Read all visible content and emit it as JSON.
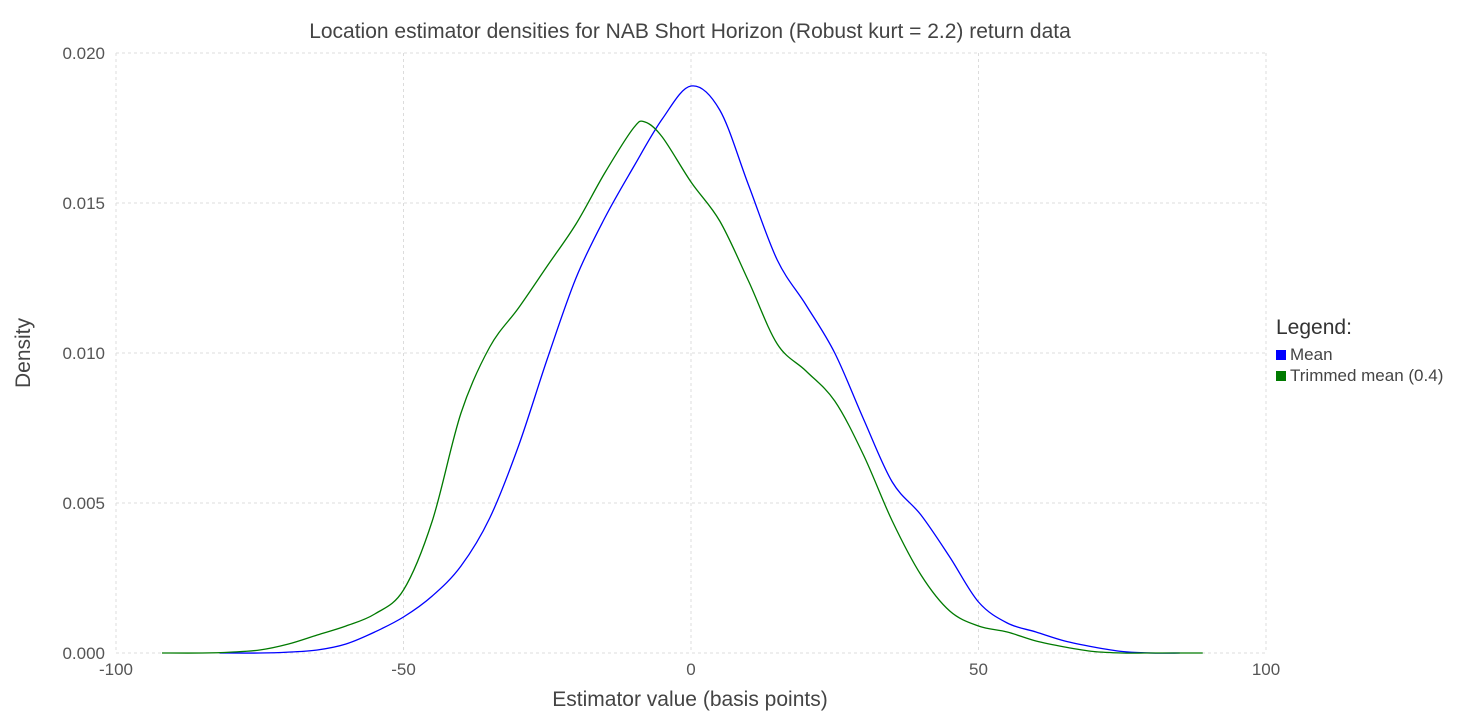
{
  "chart_data": {
    "type": "line",
    "title": "Location estimator densities for NAB Short Horizon (Robust kurt = 2.2) return data",
    "xlabel": "Estimator value (basis points)",
    "ylabel": "Density",
    "xlim": [
      -100,
      100
    ],
    "ylim": [
      0,
      0.02
    ],
    "x_ticks": [
      "-100",
      "-50",
      "0",
      "50",
      "100"
    ],
    "y_ticks": [
      "0.000",
      "0.005",
      "0.010",
      "0.015",
      "0.020"
    ],
    "grid": true,
    "legend": {
      "title": "Legend:",
      "placement": "right"
    },
    "series": [
      {
        "name": "Mean",
        "color": "#0000ff",
        "points": [
          [
            -82,
            0.0
          ],
          [
            -75,
            0.0
          ],
          [
            -70,
            3e-05
          ],
          [
            -65,
            0.0001
          ],
          [
            -60,
            0.0003
          ],
          [
            -55,
            0.0007
          ],
          [
            -50,
            0.0012
          ],
          [
            -45,
            0.0019
          ],
          [
            -40,
            0.0029
          ],
          [
            -35,
            0.0045
          ],
          [
            -30,
            0.0069
          ],
          [
            -25,
            0.0098
          ],
          [
            -20,
            0.0125
          ],
          [
            -15,
            0.0145
          ],
          [
            -10,
            0.0162
          ],
          [
            -5,
            0.0178
          ],
          [
            0,
            0.0189
          ],
          [
            5,
            0.0181
          ],
          [
            10,
            0.0156
          ],
          [
            15,
            0.0131
          ],
          [
            20,
            0.0116
          ],
          [
            25,
            0.01
          ],
          [
            30,
            0.0078
          ],
          [
            35,
            0.0057
          ],
          [
            40,
            0.0046
          ],
          [
            45,
            0.0032
          ],
          [
            50,
            0.0017
          ],
          [
            55,
            0.001
          ],
          [
            60,
            0.0007
          ],
          [
            65,
            0.0004
          ],
          [
            70,
            0.0002
          ],
          [
            75,
            5e-05
          ],
          [
            80,
            0.0
          ],
          [
            85,
            0.0
          ]
        ]
      },
      {
        "name": "Trimmed mean (0.4)",
        "color": "#007a00",
        "points": [
          [
            -92,
            0.0
          ],
          [
            -85,
            0.0
          ],
          [
            -80,
            3e-05
          ],
          [
            -75,
            0.0001
          ],
          [
            -70,
            0.0003
          ],
          [
            -65,
            0.0006
          ],
          [
            -60,
            0.0009
          ],
          [
            -55,
            0.0013
          ],
          [
            -50,
            0.0021
          ],
          [
            -45,
            0.0044
          ],
          [
            -40,
            0.008
          ],
          [
            -35,
            0.0102
          ],
          [
            -30,
            0.0115
          ],
          [
            -25,
            0.0129
          ],
          [
            -20,
            0.0143
          ],
          [
            -15,
            0.016
          ],
          [
            -10,
            0.0175
          ],
          [
            -8,
            0.0177
          ],
          [
            -5,
            0.0172
          ],
          [
            0,
            0.0157
          ],
          [
            5,
            0.0144
          ],
          [
            10,
            0.0124
          ],
          [
            15,
            0.0103
          ],
          [
            20,
            0.0094
          ],
          [
            25,
            0.0084
          ],
          [
            30,
            0.0066
          ],
          [
            35,
            0.0044
          ],
          [
            40,
            0.0026
          ],
          [
            45,
            0.0014
          ],
          [
            50,
            0.0009
          ],
          [
            55,
            0.0007
          ],
          [
            60,
            0.0004
          ],
          [
            65,
            0.0002
          ],
          [
            70,
            5e-05
          ],
          [
            75,
            0.0
          ],
          [
            80,
            0.0
          ],
          [
            89,
            0.0
          ]
        ]
      }
    ]
  }
}
